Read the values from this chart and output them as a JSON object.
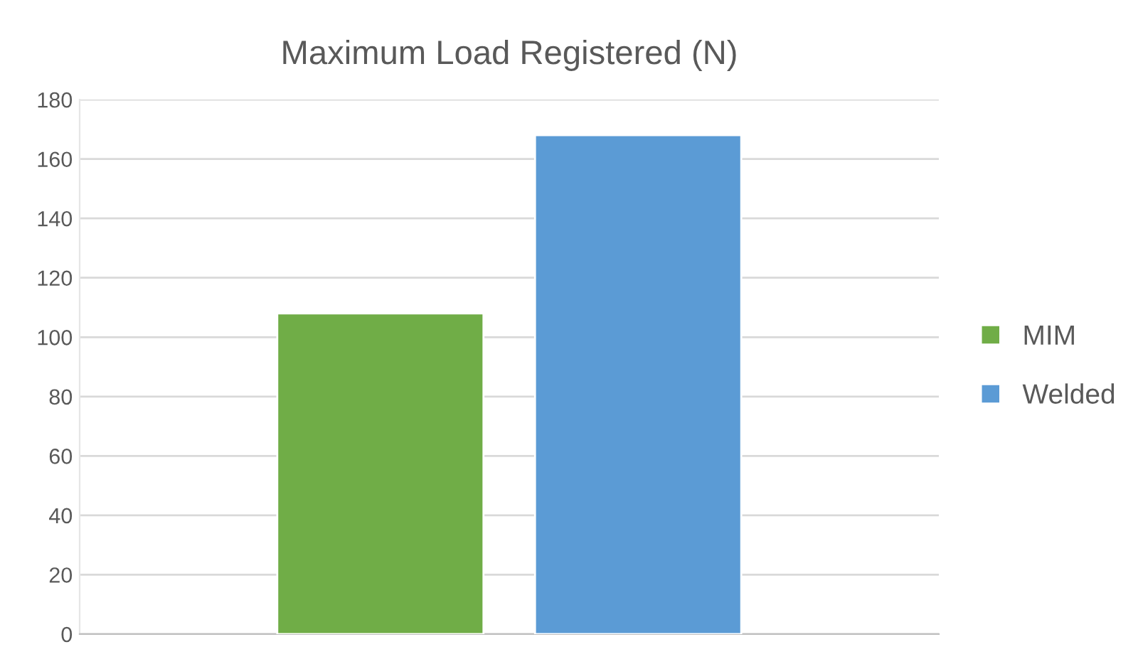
{
  "chart_data": {
    "type": "bar",
    "title": "Maximum Load Registered (N)",
    "categories": [
      null
    ],
    "series": [
      {
        "name": "MIM",
        "color": "#70ad47",
        "values": [
          108
        ]
      },
      {
        "name": "Welded",
        "color": "#5b9bd5",
        "values": [
          168
        ]
      }
    ],
    "ylim": [
      0,
      180
    ],
    "yticks": [
      0,
      20,
      40,
      60,
      80,
      100,
      120,
      140,
      160,
      180
    ],
    "grid": "y",
    "legend": "right"
  }
}
